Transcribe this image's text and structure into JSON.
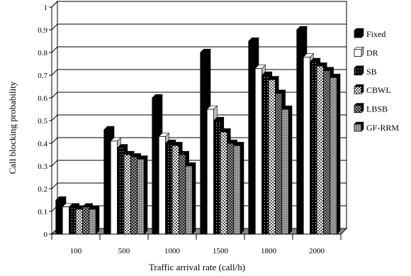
{
  "chart_data": {
    "type": "bar",
    "title": "",
    "xlabel": "Traffic arrival rate (call/h)",
    "ylabel": "Call blocking probability",
    "categories": [
      "100",
      "500",
      "1000",
      "1500",
      "1800",
      "2000"
    ],
    "series": [
      {
        "name": "Fixed",
        "values": [
          0.15,
          0.46,
          0.6,
          0.8,
          0.85,
          0.9
        ],
        "pattern": "solid-black"
      },
      {
        "name": "DR",
        "values": [
          0.12,
          0.41,
          0.43,
          0.55,
          0.73,
          0.78
        ],
        "pattern": "white"
      },
      {
        "name": "SB",
        "values": [
          0.12,
          0.38,
          0.4,
          0.5,
          0.7,
          0.76
        ],
        "pattern": "black-dots"
      },
      {
        "name": "CBWL",
        "values": [
          0.11,
          0.35,
          0.39,
          0.45,
          0.68,
          0.74
        ],
        "pattern": "light-checker"
      },
      {
        "name": "LBSB",
        "values": [
          0.12,
          0.34,
          0.35,
          0.4,
          0.62,
          0.72
        ],
        "pattern": "dark-checker"
      },
      {
        "name": "GF-RRM",
        "values": [
          0.11,
          0.33,
          0.3,
          0.39,
          0.55,
          0.69
        ],
        "pattern": "grey-grid"
      }
    ],
    "ylim": [
      0,
      1
    ],
    "yticks": [
      "0",
      "0.1",
      "0.2",
      "0.3",
      "0.4",
      "0.5",
      "0.6",
      "0.7",
      "0.8",
      "0.9",
      "1"
    ],
    "grid": true,
    "legend": "right",
    "style": "3d"
  }
}
